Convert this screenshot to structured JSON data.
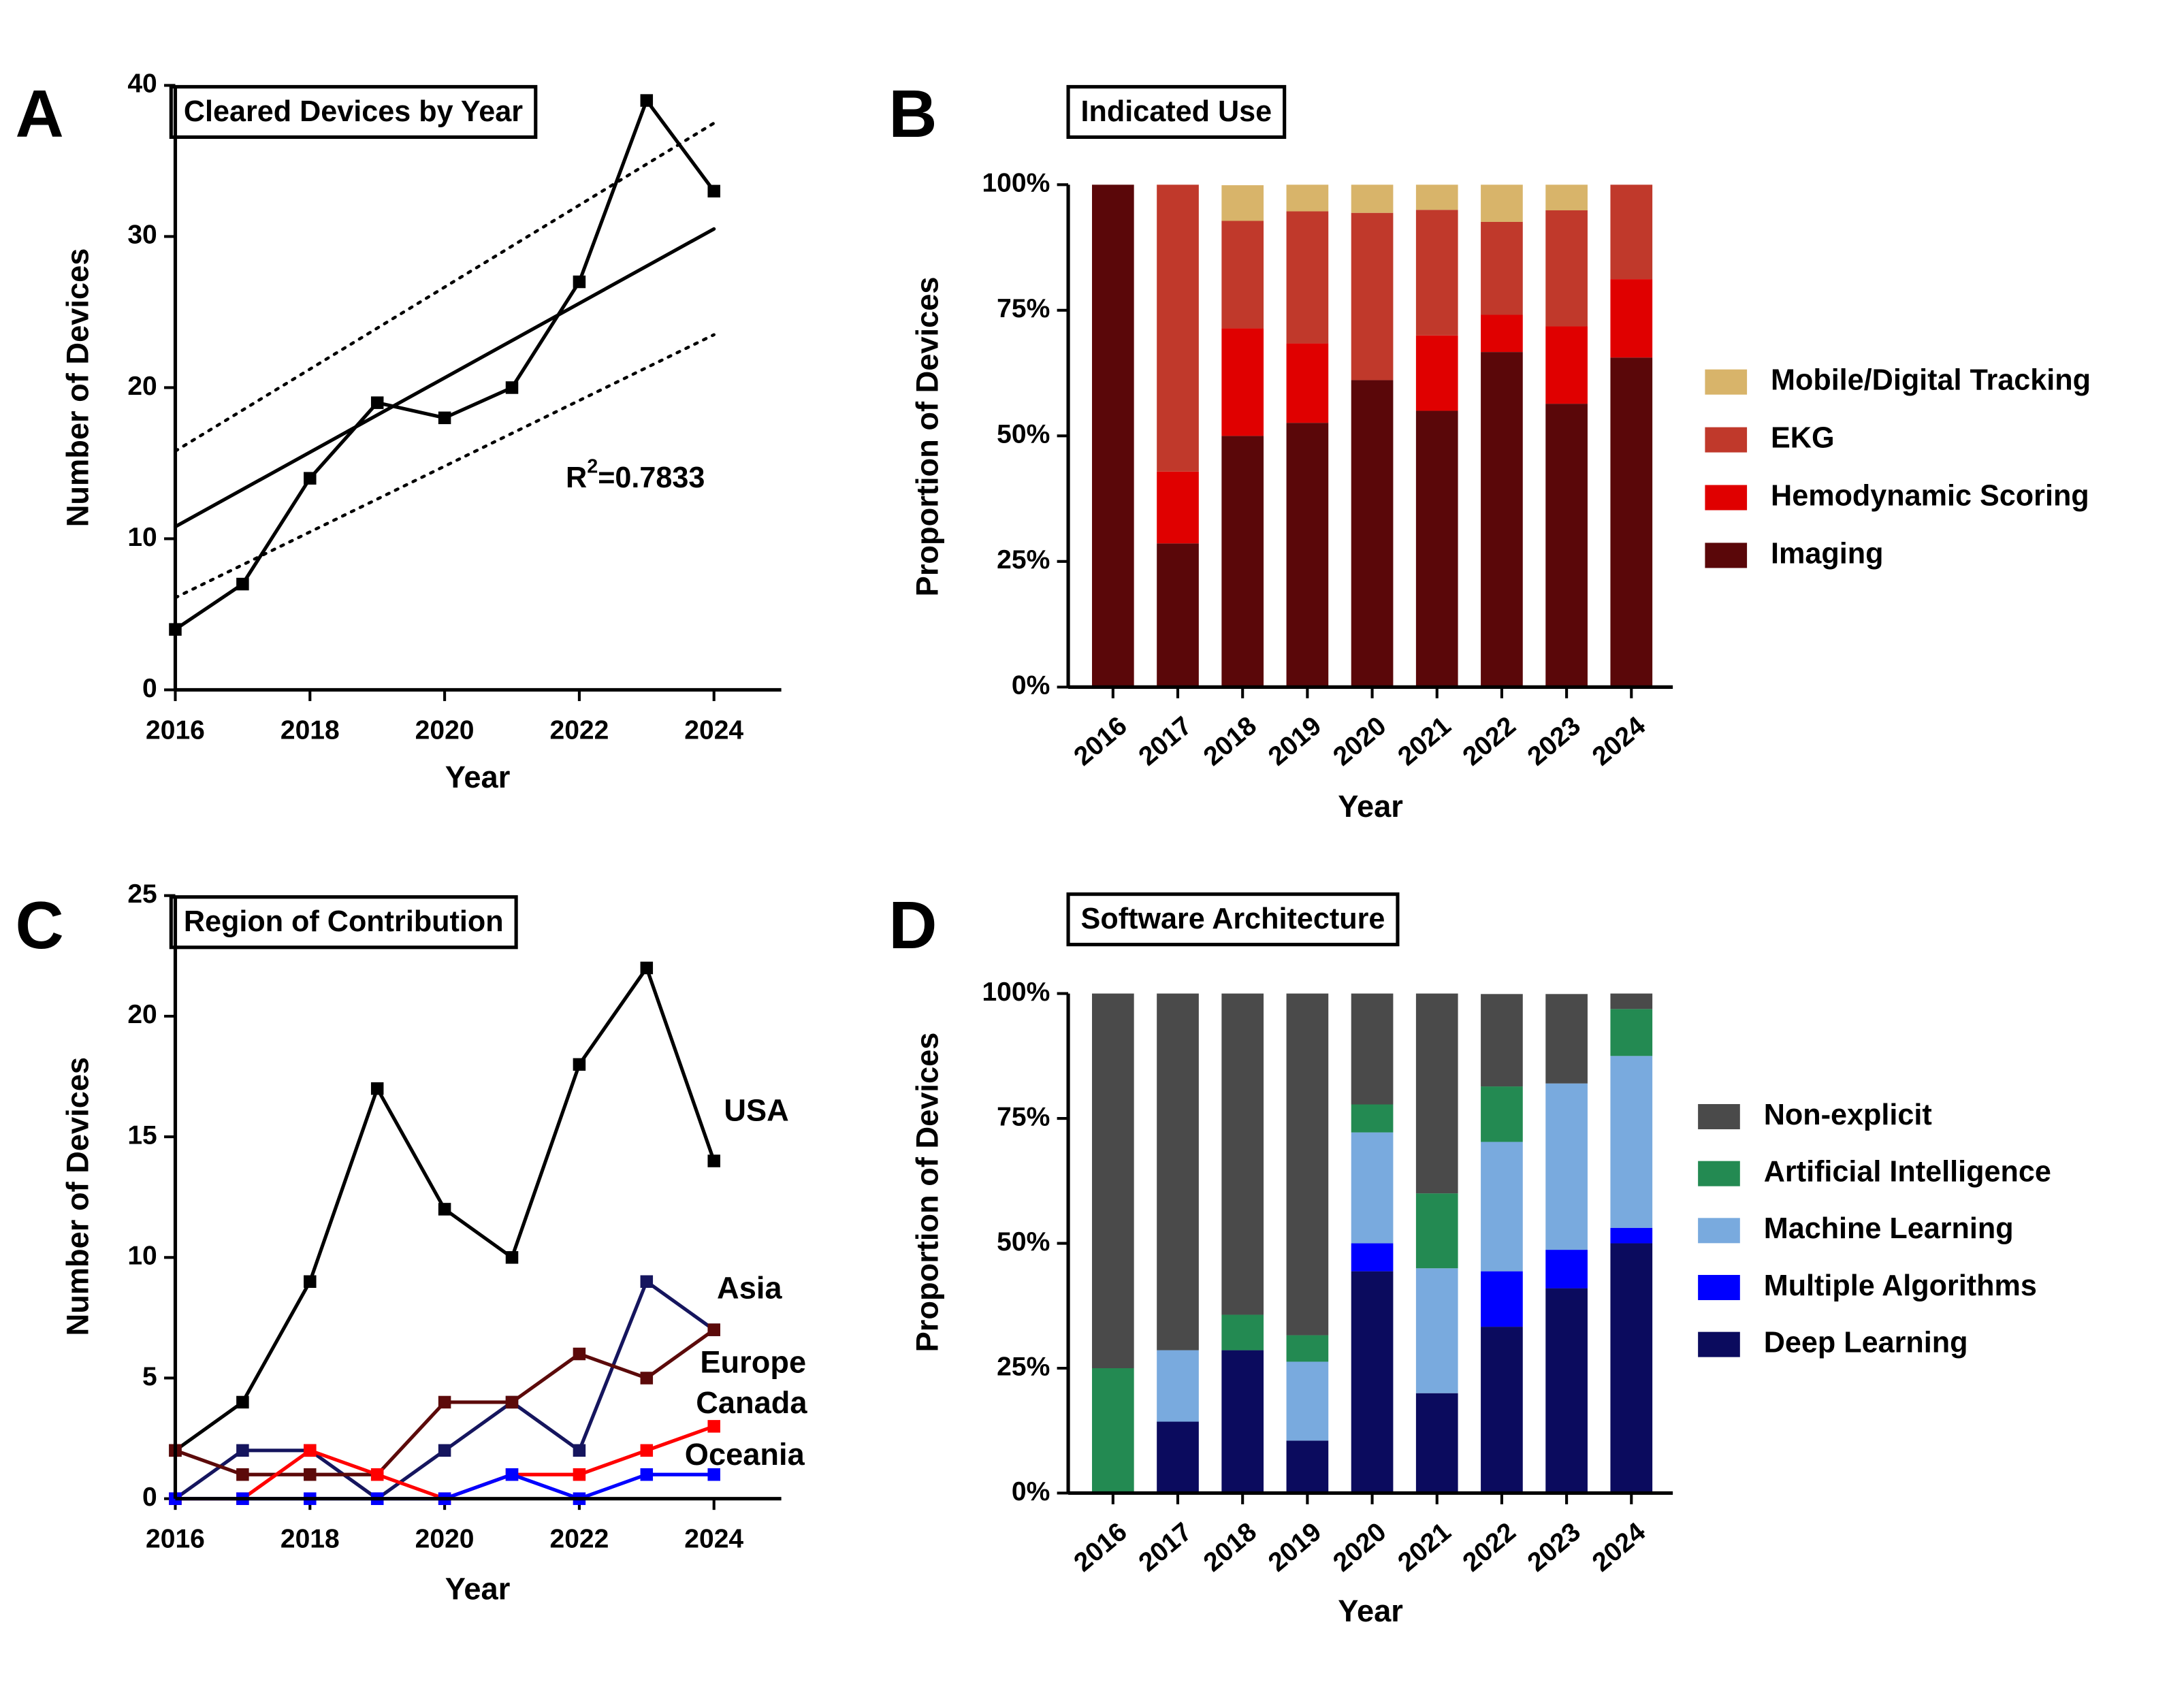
{
  "chart_data": [
    {
      "type": "line",
      "panel_label": "A",
      "title": "Cleared Devices by Year",
      "x_label": "Year",
      "y_label": "Number of Devices",
      "x": [
        2016,
        2017,
        2018,
        2019,
        2020,
        2021,
        2022,
        2023,
        2024
      ],
      "series": [
        {
          "color": "#000000",
          "values": [
            4,
            7,
            14,
            19,
            18,
            20,
            27,
            39,
            33
          ]
        }
      ],
      "fit": {
        "x": [
          2016,
          2024
        ],
        "values": [
          10.8,
          30.5
        ],
        "upper": [
          15.8,
          37.5
        ],
        "lower": [
          6.1,
          23.5
        ]
      },
      "annotation": [
        "R",
        "2",
        "=0.7833"
      ],
      "xlim": [
        2016,
        2025
      ],
      "xticks": [
        2016,
        2018,
        2020,
        2022,
        2024
      ],
      "ylim": [
        0,
        40
      ],
      "yticks": [
        0,
        10,
        20,
        30,
        40
      ]
    },
    {
      "type": "stacked_bar",
      "panel_label": "B",
      "title": "Indicated Use",
      "x_label": "Year",
      "y_label": "Proportion of Devices",
      "categories": [
        "2016",
        "2017",
        "2018",
        "2019",
        "2020",
        "2021",
        "2022",
        "2023",
        "2024"
      ],
      "series": [
        {
          "name": "Imaging",
          "color": "#5a0709",
          "values": [
            100,
            28.6,
            50,
            52.6,
            61.1,
            55,
            66.7,
            56.4,
            65.6
          ]
        },
        {
          "name": "Hemodynamic Scoring",
          "color": "#e00000",
          "values": [
            0,
            14.3,
            21.4,
            15.8,
            0,
            15,
            7.4,
            15.4,
            15.6
          ]
        },
        {
          "name": "EKG",
          "color": "#c0392b",
          "values": [
            0,
            57.1,
            21.4,
            26.3,
            33.3,
            25,
            18.5,
            23.1,
            18.8
          ]
        },
        {
          "name": "Mobile/Digital Tracking",
          "color": "#d8b46a",
          "values": [
            0,
            0,
            7.1,
            5.3,
            5.6,
            5,
            7.4,
            5.1,
            0
          ]
        }
      ],
      "ylim": [
        0,
        100
      ],
      "yticks": [
        {
          "value": 0,
          "label": "0%"
        },
        {
          "value": 25,
          "label": "25%"
        },
        {
          "value": 50,
          "label": "50%"
        },
        {
          "value": 75,
          "label": "75%"
        },
        {
          "value": 100,
          "label": "100%"
        }
      ]
    },
    {
      "type": "line",
      "panel_label": "C",
      "title": "Region of Contribution",
      "x_label": "Year",
      "y_label": "Number of Devices",
      "x": [
        2016,
        2017,
        2018,
        2019,
        2020,
        2021,
        2022,
        2023,
        2024
      ],
      "series": [
        {
          "name": "USA",
          "color": "#000000",
          "values": [
            2,
            4,
            9,
            17,
            12,
            10,
            18,
            22,
            14
          ]
        },
        {
          "name": "Asia",
          "color": "#15155e",
          "values": [
            0,
            2,
            2,
            0,
            2,
            4,
            2,
            9,
            7
          ]
        },
        {
          "name": "Europe",
          "color": "#5c0a0a",
          "values": [
            2,
            1,
            1,
            1,
            4,
            4,
            6,
            5,
            7
          ]
        },
        {
          "name": "Canada",
          "color": "#ff0000",
          "values": [
            0,
            0,
            2,
            1,
            0,
            1,
            1,
            2,
            3
          ]
        },
        {
          "name": "Oceania",
          "color": "#0000ff",
          "values": [
            0,
            0,
            0,
            0,
            0,
            1,
            0,
            1,
            1
          ]
        }
      ],
      "xlim": [
        2016,
        2025
      ],
      "xticks": [
        2016,
        2018,
        2020,
        2022,
        2024
      ],
      "ylim": [
        0,
        25
      ],
      "yticks": [
        0,
        5,
        10,
        15,
        20,
        25
      ]
    },
    {
      "type": "stacked_bar",
      "panel_label": "D",
      "title": "Software Architecture",
      "x_label": "Year",
      "y_label": "Proportion of Devices",
      "categories": [
        "2016",
        "2017",
        "2018",
        "2019",
        "2020",
        "2021",
        "2022",
        "2023",
        "2024"
      ],
      "series": [
        {
          "name": "Deep Learning",
          "color": "#0b0b5e",
          "values": [
            0,
            14.3,
            28.6,
            10.5,
            44.4,
            20,
            33.3,
            41.0,
            50
          ]
        },
        {
          "name": "Multiple Algorithms",
          "color": "#0000ff",
          "values": [
            0,
            0,
            0,
            0,
            5.6,
            0,
            11.1,
            7.7,
            3.1
          ]
        },
        {
          "name": "Machine Learning",
          "color": "#79aade",
          "values": [
            0,
            14.3,
            0,
            15.8,
            22.2,
            25,
            25.9,
            33.3,
            34.4
          ]
        },
        {
          "name": "Artificial Intelligence",
          "color": "#238a52",
          "values": [
            25,
            0,
            7.1,
            5.3,
            5.6,
            15,
            11.1,
            0,
            9.4
          ]
        },
        {
          "name": "Non-explicit",
          "color": "#4a4a4a",
          "values": [
            75,
            71.4,
            64.3,
            68.4,
            22.2,
            40,
            18.5,
            17.9,
            3.1
          ]
        }
      ],
      "ylim": [
        0,
        100
      ],
      "yticks": [
        {
          "value": 0,
          "label": "0%"
        },
        {
          "value": 25,
          "label": "25%"
        },
        {
          "value": 50,
          "label": "50%"
        },
        {
          "value": 75,
          "label": "75%"
        },
        {
          "value": 100,
          "label": "100%"
        }
      ]
    }
  ]
}
